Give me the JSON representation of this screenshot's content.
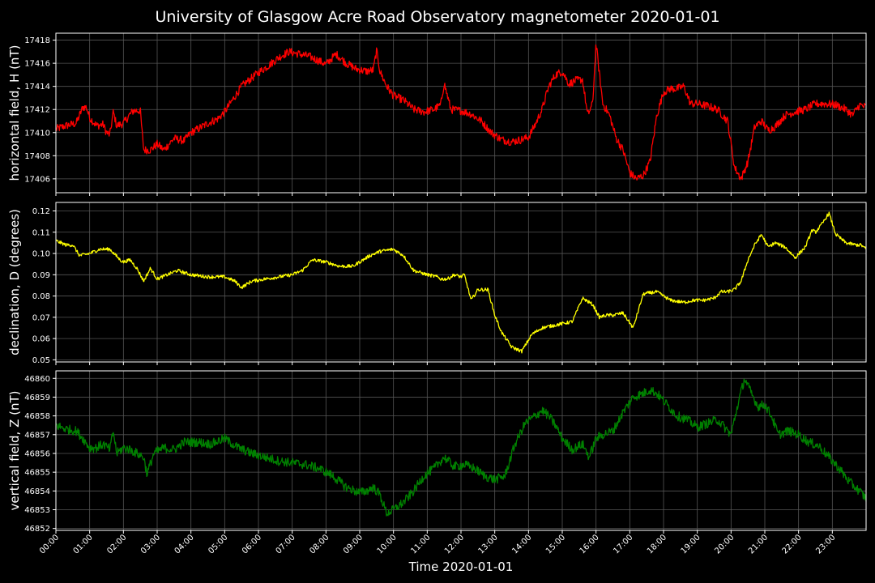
{
  "title": "University of Glasgow Acre Road Observatory magnetometer 2020-01-01",
  "xlabel": "Time 2020-01-01",
  "chart_data": {
    "type": "line",
    "grid": true,
    "background": "#000000",
    "x_ticks": [
      "00:00",
      "01:00",
      "02:00",
      "03:00",
      "04:00",
      "05:00",
      "06:00",
      "07:00",
      "08:00",
      "09:00",
      "10:00",
      "11:00",
      "12:00",
      "13:00",
      "14:00",
      "15:00",
      "16:00",
      "17:00",
      "18:00",
      "19:00",
      "20:00",
      "21:00",
      "22:00",
      "23:00"
    ],
    "xlim_hours": [
      0,
      24
    ],
    "panels": [
      {
        "name": "H",
        "ylabel": "horizontal field, H (nT)",
        "color": "#ff0000",
        "ylim": [
          17404.8,
          17418.6
        ],
        "yticks": [
          17406,
          17408,
          17410,
          17412,
          17414,
          17416,
          17418
        ],
        "tick_decimals": 0,
        "noise": 0.35,
        "x": [
          0,
          0.3,
          0.6,
          0.8,
          0.9,
          1.0,
          1.2,
          1.4,
          1.5,
          1.6,
          1.7,
          1.8,
          1.9,
          2.0,
          2.2,
          2.3,
          2.5,
          2.6,
          2.8,
          3.0,
          3.2,
          3.5,
          3.8,
          4.0,
          4.2,
          4.5,
          4.8,
          5.0,
          5.5,
          6.0,
          6.3,
          6.6,
          6.9,
          7.2,
          7.5,
          7.8,
          8.0,
          8.3,
          8.6,
          8.9,
          9.2,
          9.4,
          9.5,
          9.6,
          9.8,
          10.0,
          10.3,
          10.6,
          10.9,
          11.2,
          11.4,
          11.5,
          11.7,
          12.0,
          12.3,
          12.6,
          12.9,
          13.2,
          13.5,
          13.8,
          14.0,
          14.2,
          14.4,
          14.6,
          14.8,
          15.0,
          15.2,
          15.4,
          15.6,
          15.75,
          15.9,
          16.0,
          16.2,
          16.4,
          16.6,
          16.8,
          17.0,
          17.2,
          17.4,
          17.6,
          17.8,
          18.0,
          18.2,
          18.4,
          18.6,
          18.8,
          19.0,
          19.3,
          19.6,
          19.9,
          20.1,
          20.3,
          20.5,
          20.7,
          20.9,
          21.1,
          21.3,
          21.6,
          21.9,
          22.2,
          22.5,
          22.8,
          23.1,
          23.4,
          23.6,
          23.8,
          24.0
        ],
        "y": [
          17410.3,
          17410.6,
          17410.8,
          17412.2,
          17412.2,
          17411.3,
          17410.6,
          17410.7,
          17410.0,
          17409.8,
          17411.8,
          17410.6,
          17410.7,
          17410.8,
          17411.6,
          17411.9,
          17411.9,
          17408.5,
          17408.5,
          17409.0,
          17408.5,
          17409.5,
          17409.3,
          17410.0,
          17410.3,
          17410.8,
          17411.2,
          17411.8,
          17414.0,
          17415.2,
          17415.8,
          17416.5,
          17417.0,
          17416.8,
          17416.6,
          17416.2,
          17415.9,
          17416.8,
          17416.0,
          17415.5,
          17415.3,
          17415.4,
          17417.1,
          17415.3,
          17414.0,
          17413.2,
          17412.8,
          17412.0,
          17411.8,
          17412.0,
          17412.4,
          17414.3,
          17412.0,
          17411.9,
          17411.6,
          17411.0,
          17410.0,
          17409.4,
          17409.2,
          17409.4,
          17409.6,
          17410.7,
          17412.0,
          17414.0,
          17415.0,
          17415.3,
          17414.2,
          17414.5,
          17414.6,
          17411.5,
          17412.5,
          17417.7,
          17412.5,
          17411.5,
          17409.5,
          17408.5,
          17406.5,
          17406.0,
          17406.3,
          17407.5,
          17411.5,
          17413.5,
          17413.8,
          17413.8,
          17414.0,
          17412.5,
          17412.5,
          17412.3,
          17412.0,
          17411.0,
          17407.0,
          17406.0,
          17407.5,
          17410.5,
          17411.0,
          17410.2,
          17410.5,
          17411.5,
          17411.8,
          17412.0,
          17412.5,
          17412.5,
          17412.4,
          17412.0,
          17411.5,
          17412.4,
          17412.2
        ]
      },
      {
        "name": "D",
        "ylabel": "declination, D (degrees)",
        "color": "#ffff00",
        "ylim": [
          0.049,
          0.124
        ],
        "yticks": [
          0.05,
          0.06,
          0.07,
          0.08,
          0.09,
          0.1,
          0.11,
          0.12
        ],
        "tick_decimals": 2,
        "noise": 0.0008,
        "x": [
          0,
          0.3,
          0.5,
          0.7,
          1.0,
          1.3,
          1.6,
          1.9,
          2.0,
          2.2,
          2.4,
          2.6,
          2.8,
          3.0,
          3.3,
          3.6,
          4.0,
          4.5,
          5.0,
          5.3,
          5.5,
          5.8,
          6.2,
          6.6,
          7.0,
          7.3,
          7.6,
          8.0,
          8.4,
          8.8,
          9.0,
          9.3,
          9.6,
          10.0,
          10.3,
          10.6,
          11.0,
          11.3,
          11.4,
          11.6,
          11.8,
          12.0,
          12.1,
          12.3,
          12.5,
          12.8,
          13.0,
          13.2,
          13.5,
          13.8,
          14.1,
          14.4,
          14.7,
          15.0,
          15.3,
          15.6,
          15.9,
          16.1,
          16.3,
          16.5,
          16.8,
          17.1,
          17.4,
          17.8,
          18.2,
          18.6,
          18.9,
          19.2,
          19.5,
          19.7,
          19.9,
          20.1,
          20.3,
          20.5,
          20.7,
          20.9,
          21.1,
          21.3,
          21.6,
          21.9,
          22.2,
          22.4,
          22.5,
          22.7,
          22.9,
          23.1,
          23.4,
          23.7,
          23.85,
          24.0
        ],
        "y": [
          0.106,
          0.104,
          0.104,
          0.099,
          0.1,
          0.102,
          0.102,
          0.097,
          0.096,
          0.097,
          0.093,
          0.087,
          0.093,
          0.088,
          0.09,
          0.092,
          0.09,
          0.089,
          0.089,
          0.087,
          0.084,
          0.087,
          0.088,
          0.089,
          0.09,
          0.092,
          0.097,
          0.096,
          0.094,
          0.094,
          0.096,
          0.099,
          0.101,
          0.102,
          0.099,
          0.092,
          0.09,
          0.089,
          0.088,
          0.088,
          0.09,
          0.089,
          0.09,
          0.078,
          0.083,
          0.083,
          0.071,
          0.063,
          0.056,
          0.054,
          0.062,
          0.065,
          0.066,
          0.067,
          0.068,
          0.079,
          0.076,
          0.07,
          0.071,
          0.071,
          0.072,
          0.065,
          0.081,
          0.082,
          0.078,
          0.077,
          0.078,
          0.078,
          0.079,
          0.082,
          0.082,
          0.083,
          0.087,
          0.097,
          0.104,
          0.109,
          0.103,
          0.105,
          0.103,
          0.098,
          0.103,
          0.111,
          0.11,
          0.114,
          0.119,
          0.109,
          0.105,
          0.104,
          0.104,
          0.102
        ]
      },
      {
        "name": "Z",
        "ylabel": "vertical field, Z (nT)",
        "color": "#008000",
        "ylim": [
          46851.9,
          46860.4
        ],
        "yticks": [
          46852,
          46853,
          46854,
          46855,
          46856,
          46857,
          46858,
          46859,
          46860
        ],
        "tick_decimals": 0,
        "noise": 0.25,
        "x": [
          0,
          0.3,
          0.6,
          0.8,
          1.0,
          1.2,
          1.4,
          1.6,
          1.7,
          1.8,
          2.0,
          2.2,
          2.4,
          2.6,
          2.7,
          2.9,
          3.2,
          3.5,
          3.8,
          4.2,
          4.6,
          5.0,
          5.4,
          5.8,
          6.2,
          6.6,
          7.0,
          7.4,
          7.8,
          8.2,
          8.6,
          9.0,
          9.2,
          9.4,
          9.6,
          9.8,
          10.0,
          10.3,
          10.6,
          10.9,
          11.2,
          11.5,
          11.8,
          12.1,
          12.4,
          12.7,
          13.0,
          13.3,
          13.6,
          13.9,
          14.2,
          14.4,
          14.6,
          14.8,
          15.0,
          15.3,
          15.6,
          15.8,
          16.0,
          16.2,
          16.5,
          16.8,
          17.1,
          17.4,
          17.6,
          17.8,
          18.1,
          18.4,
          18.7,
          19.0,
          19.3,
          19.6,
          19.8,
          20.0,
          20.2,
          20.4,
          20.6,
          20.8,
          21.0,
          21.2,
          21.4,
          21.7,
          22.0,
          22.3,
          22.6,
          22.9,
          23.2,
          23.5,
          23.8,
          24.0
        ],
        "y": [
          46857.5,
          46857.3,
          46857.2,
          46856.8,
          46856.3,
          46856.3,
          46856.5,
          46856.2,
          46857.2,
          46856.0,
          46856.3,
          46856.2,
          46856.0,
          46855.8,
          46854.9,
          46856.0,
          46856.3,
          46856.2,
          46856.6,
          46856.6,
          46856.5,
          46856.8,
          46856.3,
          46856.0,
          46855.8,
          46855.6,
          46855.5,
          46855.4,
          46855.2,
          46854.8,
          46854.2,
          46853.9,
          46854.0,
          46854.2,
          46853.8,
          46852.8,
          46853.0,
          46853.4,
          46854.0,
          46854.8,
          46855.2,
          46855.8,
          46855.3,
          46855.4,
          46855.2,
          46854.8,
          46854.6,
          46854.8,
          46856.5,
          46857.6,
          46858.0,
          46858.3,
          46858.0,
          46857.5,
          46856.8,
          46856.2,
          46856.5,
          46855.8,
          46856.8,
          46857.0,
          46857.2,
          46858.2,
          46859.0,
          46859.2,
          46859.4,
          46859.2,
          46858.6,
          46858.0,
          46857.8,
          46857.4,
          46857.6,
          46857.8,
          46857.4,
          46857.0,
          46858.6,
          46860.0,
          46859.2,
          46858.5,
          46858.6,
          46858.0,
          46857.0,
          46857.2,
          46857.0,
          46856.6,
          46856.4,
          46855.8,
          46855.2,
          46854.5,
          46854.0,
          46853.6
        ]
      }
    ]
  }
}
